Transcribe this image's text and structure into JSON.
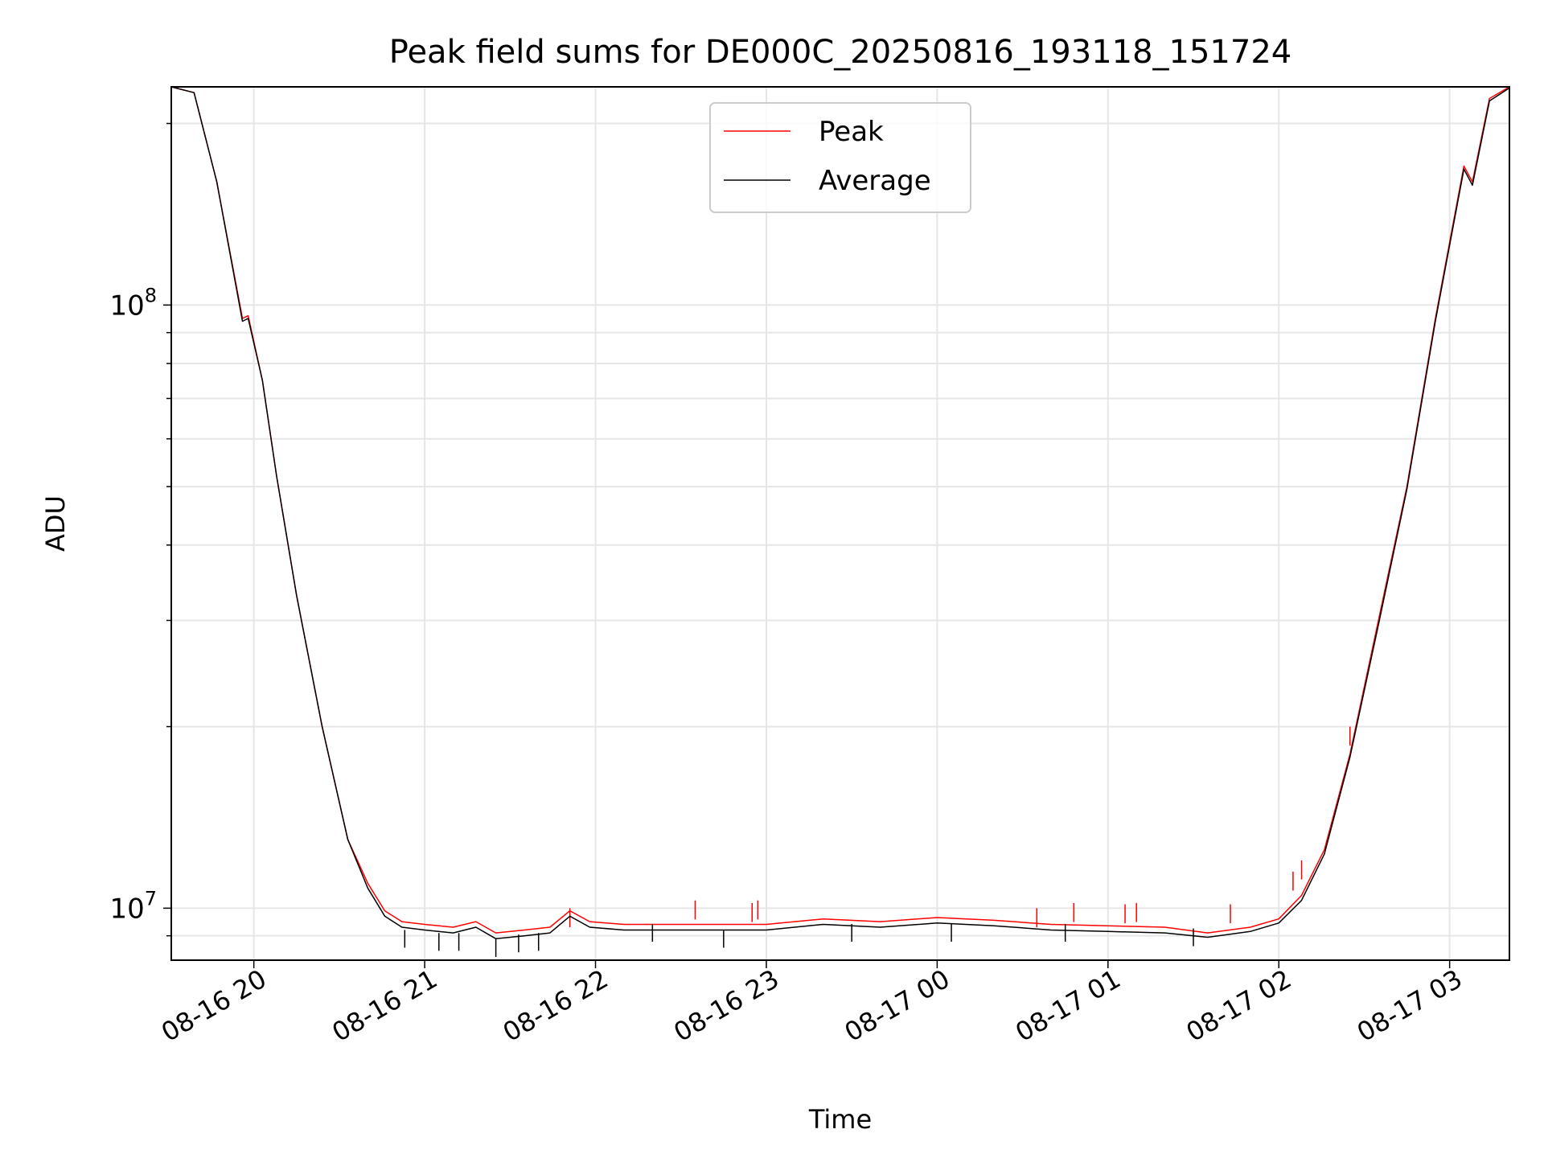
{
  "chart_data": {
    "type": "line",
    "title": "Peak field sums for DE000C_20250816_193118_151724",
    "xlabel": "Time",
    "ylabel": "ADU",
    "yscale": "log",
    "xlim": [
      "2025-08-16T19:31:00",
      "2025-08-17T03:21:00"
    ],
    "ylim": [
      8200000,
      230000000
    ],
    "grid": true,
    "legend_position": "top-center",
    "x_ticks": [
      {
        "t": "2025-08-16T20:00:00",
        "label": "08-16 20"
      },
      {
        "t": "2025-08-16T21:00:00",
        "label": "08-16 21"
      },
      {
        "t": "2025-08-16T22:00:00",
        "label": "08-16 22"
      },
      {
        "t": "2025-08-16T23:00:00",
        "label": "08-16 23"
      },
      {
        "t": "2025-08-17T00:00:00",
        "label": "08-17 00"
      },
      {
        "t": "2025-08-17T01:00:00",
        "label": "08-17 01"
      },
      {
        "t": "2025-08-17T02:00:00",
        "label": "08-17 02"
      },
      {
        "t": "2025-08-17T03:00:00",
        "label": "08-17 03"
      }
    ],
    "y_major_ticks": [
      {
        "value": 10000000,
        "base": "10",
        "exp": "7"
      },
      {
        "value": 100000000,
        "base": "10",
        "exp": "8"
      }
    ],
    "series": [
      {
        "name": "Peak",
        "color": "#ff0000",
        "x": [
          "2025-08-16T19:31:00",
          "2025-08-16T19:39:00",
          "2025-08-16T19:47:00",
          "2025-08-16T19:56:00",
          "2025-08-16T19:58:00",
          "2025-08-16T20:03:00",
          "2025-08-16T20:08:00",
          "2025-08-16T20:15:00",
          "2025-08-16T20:24:00",
          "2025-08-16T20:33:00",
          "2025-08-16T20:40:00",
          "2025-08-16T20:46:00",
          "2025-08-16T20:52:00",
          "2025-08-16T21:00:00",
          "2025-08-16T21:10:00",
          "2025-08-16T21:18:00",
          "2025-08-16T21:25:00",
          "2025-08-16T21:35:00",
          "2025-08-16T21:44:00",
          "2025-08-16T21:51:00",
          "2025-08-16T21:58:00",
          "2025-08-16T22:10:00",
          "2025-08-16T22:40:00",
          "2025-08-16T23:00:00",
          "2025-08-16T23:20:00",
          "2025-08-16T23:40:00",
          "2025-08-17T00:00:00",
          "2025-08-17T00:20:00",
          "2025-08-17T00:40:00",
          "2025-08-17T01:00:00",
          "2025-08-17T01:20:00",
          "2025-08-17T01:35:00",
          "2025-08-17T01:50:00",
          "2025-08-17T02:00:00",
          "2025-08-17T02:08:00",
          "2025-08-17T02:16:00",
          "2025-08-17T02:25:00",
          "2025-08-17T02:35:00",
          "2025-08-17T02:45:00",
          "2025-08-17T02:55:00",
          "2025-08-17T03:05:00",
          "2025-08-17T03:08:00",
          "2025-08-17T03:14:00",
          "2025-08-17T03:21:00"
        ],
        "values": [
          230000000,
          225000000,
          160000000,
          95000000,
          96000000,
          75000000,
          52000000,
          33000000,
          20000000,
          13000000,
          11000000,
          9900000,
          9500000,
          9400000,
          9300000,
          9500000,
          9100000,
          9200000,
          9300000,
          9900000,
          9500000,
          9400000,
          9400000,
          9400000,
          9600000,
          9500000,
          9650000,
          9550000,
          9400000,
          9350000,
          9300000,
          9100000,
          9300000,
          9600000,
          10500000,
          12500000,
          18000000,
          30000000,
          50000000,
          95000000,
          170000000,
          160000000,
          220000000,
          230000000
        ],
        "spikes": [
          {
            "x": "2025-08-16T21:51:00",
            "value": 10000000
          },
          {
            "x": "2025-08-16T22:35:00",
            "value": 10300000
          },
          {
            "x": "2025-08-16T22:55:00",
            "value": 10200000
          },
          {
            "x": "2025-08-16T22:57:00",
            "value": 10300000
          },
          {
            "x": "2025-08-17T00:35:00",
            "value": 10000000
          },
          {
            "x": "2025-08-17T00:48:00",
            "value": 10200000
          },
          {
            "x": "2025-08-17T01:06:00",
            "value": 10150000
          },
          {
            "x": "2025-08-17T01:10:00",
            "value": 10200000
          },
          {
            "x": "2025-08-17T01:43:00",
            "value": 10150000
          },
          {
            "x": "2025-08-17T02:05:00",
            "value": 11500000
          },
          {
            "x": "2025-08-17T02:08:00",
            "value": 12000000
          },
          {
            "x": "2025-08-17T02:25:00",
            "value": 20000000
          }
        ]
      },
      {
        "name": "Average",
        "color": "#000000",
        "x": [
          "2025-08-16T19:31:00",
          "2025-08-16T19:39:00",
          "2025-08-16T19:47:00",
          "2025-08-16T19:56:00",
          "2025-08-16T19:58:00",
          "2025-08-16T20:03:00",
          "2025-08-16T20:08:00",
          "2025-08-16T20:15:00",
          "2025-08-16T20:24:00",
          "2025-08-16T20:33:00",
          "2025-08-16T20:40:00",
          "2025-08-16T20:46:00",
          "2025-08-16T20:52:00",
          "2025-08-16T21:00:00",
          "2025-08-16T21:10:00",
          "2025-08-16T21:18:00",
          "2025-08-16T21:25:00",
          "2025-08-16T21:35:00",
          "2025-08-16T21:44:00",
          "2025-08-16T21:51:00",
          "2025-08-16T21:58:00",
          "2025-08-16T22:10:00",
          "2025-08-16T22:40:00",
          "2025-08-16T23:00:00",
          "2025-08-16T23:20:00",
          "2025-08-16T23:40:00",
          "2025-08-17T00:00:00",
          "2025-08-17T00:20:00",
          "2025-08-17T00:40:00",
          "2025-08-17T01:00:00",
          "2025-08-17T01:20:00",
          "2025-08-17T01:35:00",
          "2025-08-17T01:50:00",
          "2025-08-17T02:00:00",
          "2025-08-17T02:08:00",
          "2025-08-17T02:16:00",
          "2025-08-17T02:25:00",
          "2025-08-17T02:35:00",
          "2025-08-17T02:45:00",
          "2025-08-17T02:55:00",
          "2025-08-17T03:05:00",
          "2025-08-17T03:08:00",
          "2025-08-17T03:14:00",
          "2025-08-17T03:21:00"
        ],
        "values": [
          230000000,
          225000000,
          160000000,
          94000000,
          95000000,
          75000000,
          52000000,
          33000000,
          20000000,
          13000000,
          10800000,
          9700000,
          9300000,
          9200000,
          9100000,
          9300000,
          8900000,
          9000000,
          9100000,
          9700000,
          9300000,
          9200000,
          9200000,
          9200000,
          9400000,
          9300000,
          9450000,
          9350000,
          9200000,
          9150000,
          9100000,
          8950000,
          9150000,
          9450000,
          10300000,
          12300000,
          17800000,
          29500000,
          49500000,
          94000000,
          168000000,
          158000000,
          218000000,
          229000000
        ],
        "dips": [
          {
            "x": "2025-08-16T20:53:00",
            "value": 8600000
          },
          {
            "x": "2025-08-16T21:05:00",
            "value": 8500000
          },
          {
            "x": "2025-08-16T21:12:00",
            "value": 8500000
          },
          {
            "x": "2025-08-16T21:25:00",
            "value": 8300000
          },
          {
            "x": "2025-08-16T21:33:00",
            "value": 8450000
          },
          {
            "x": "2025-08-16T21:40:00",
            "value": 8500000
          },
          {
            "x": "2025-08-16T22:20:00",
            "value": 8800000
          },
          {
            "x": "2025-08-16T22:45:00",
            "value": 8600000
          },
          {
            "x": "2025-08-16T23:30:00",
            "value": 8800000
          },
          {
            "x": "2025-08-17T00:05:00",
            "value": 8800000
          },
          {
            "x": "2025-08-17T00:45:00",
            "value": 8800000
          },
          {
            "x": "2025-08-17T01:30:00",
            "value": 8650000
          }
        ]
      }
    ]
  }
}
